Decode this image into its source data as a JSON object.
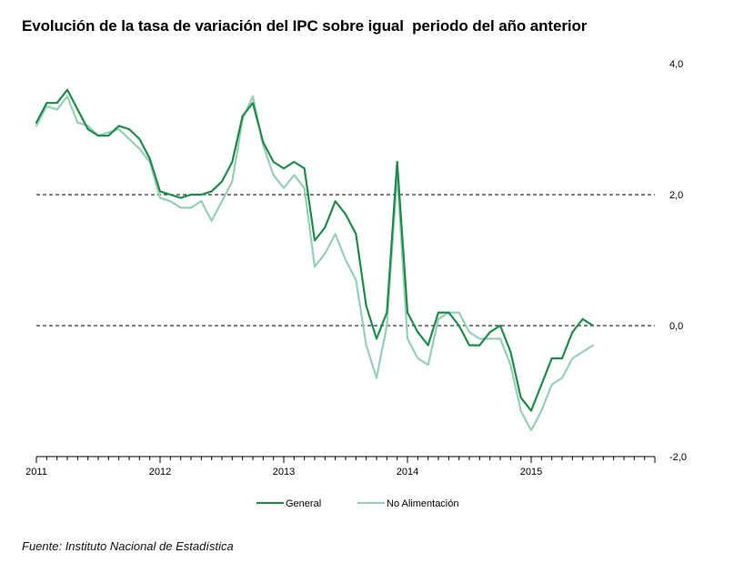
{
  "title": "Evolución de la tasa de variación del IPC sobre igual  periodo del año anterior",
  "source": "Fuente: Instituto Nacional de Estadística",
  "colors": {
    "general": "#1e8a4c",
    "no_alimentacion": "#95cfb4",
    "axis": "#000000",
    "reference": "#000000"
  },
  "chart_data": {
    "type": "line",
    "title": "Evolución de la tasa de variación del IPC sobre igual  periodo del año anterior",
    "xlabel": "",
    "ylabel": "",
    "x_range": [
      "2011-01",
      "2015-12"
    ],
    "x_tick_labels": [
      "2011",
      "2012",
      "2013",
      "2014",
      "2015"
    ],
    "ylim": [
      -2.0,
      4.0
    ],
    "y_ticks": [
      -2.0,
      0.0,
      2.0,
      4.0
    ],
    "y_tick_labels": [
      "-2,0",
      "0,0",
      "2,0",
      "4,0"
    ],
    "y_axis_side": "right",
    "reference_lines": [
      0.0,
      2.0
    ],
    "grid": false,
    "legend_position": "bottom",
    "series": [
      {
        "name": "General",
        "x": [
          "2011-01",
          "2011-02",
          "2011-03",
          "2011-04",
          "2011-05",
          "2011-06",
          "2011-07",
          "2011-08",
          "2011-09",
          "2011-10",
          "2011-11",
          "2011-12",
          "2012-01",
          "2012-02",
          "2012-03",
          "2012-04",
          "2012-05",
          "2012-06",
          "2012-07",
          "2012-08",
          "2012-09",
          "2012-10",
          "2012-11",
          "2012-12",
          "2013-01",
          "2013-02",
          "2013-03",
          "2013-04",
          "2013-05",
          "2013-06",
          "2013-07",
          "2013-08",
          "2013-09",
          "2013-10",
          "2013-11",
          "2013-12",
          "2014-01",
          "2014-02",
          "2014-03",
          "2014-04",
          "2014-05",
          "2014-06",
          "2014-07",
          "2014-08",
          "2014-09",
          "2014-10",
          "2014-11",
          "2014-12",
          "2015-01",
          "2015-02",
          "2015-03",
          "2015-04",
          "2015-05",
          "2015-06",
          "2015-07"
        ],
        "values": [
          3.1,
          3.4,
          3.4,
          3.6,
          3.3,
          3.0,
          2.9,
          2.9,
          3.05,
          3.0,
          2.85,
          2.55,
          2.05,
          2.0,
          1.95,
          2.0,
          2.0,
          2.05,
          2.2,
          2.5,
          3.2,
          3.4,
          2.8,
          2.5,
          2.4,
          2.5,
          2.4,
          1.3,
          1.5,
          1.9,
          1.7,
          1.4,
          0.3,
          -0.2,
          0.2,
          2.5,
          0.2,
          -0.1,
          -0.3,
          0.2,
          0.2,
          0.0,
          -0.3,
          -0.3,
          -0.1,
          0.0,
          -0.4,
          -1.1,
          -1.3,
          -0.9,
          -0.5,
          -0.5,
          -0.1,
          0.1,
          0.0
        ]
      },
      {
        "name": "No Alimentación",
        "x": [
          "2011-01",
          "2011-02",
          "2011-03",
          "2011-04",
          "2011-05",
          "2011-06",
          "2011-07",
          "2011-08",
          "2011-09",
          "2011-10",
          "2011-11",
          "2011-12",
          "2012-01",
          "2012-02",
          "2012-03",
          "2012-04",
          "2012-05",
          "2012-06",
          "2012-07",
          "2012-08",
          "2012-09",
          "2012-10",
          "2012-11",
          "2012-12",
          "2013-01",
          "2013-02",
          "2013-03",
          "2013-04",
          "2013-05",
          "2013-06",
          "2013-07",
          "2013-08",
          "2013-09",
          "2013-10",
          "2013-11",
          "2013-12",
          "2014-01",
          "2014-02",
          "2014-03",
          "2014-04",
          "2014-05",
          "2014-06",
          "2014-07",
          "2014-08",
          "2014-09",
          "2014-10",
          "2014-11",
          "2014-12",
          "2015-01",
          "2015-02",
          "2015-03",
          "2015-04",
          "2015-05",
          "2015-06",
          "2015-07"
        ],
        "values": [
          3.05,
          3.35,
          3.3,
          3.5,
          3.1,
          3.05,
          2.9,
          2.95,
          3.0,
          2.85,
          2.7,
          2.5,
          1.95,
          1.9,
          1.8,
          1.8,
          1.9,
          1.6,
          1.9,
          2.2,
          3.15,
          3.5,
          2.75,
          2.3,
          2.1,
          2.3,
          2.1,
          0.9,
          1.1,
          1.4,
          1.0,
          0.7,
          -0.3,
          -0.8,
          0.0,
          2.3,
          -0.2,
          -0.5,
          -0.6,
          0.1,
          0.2,
          0.2,
          -0.1,
          -0.2,
          -0.2,
          -0.2,
          -0.6,
          -1.3,
          -1.6,
          -1.3,
          -0.9,
          -0.8,
          -0.5,
          -0.4,
          -0.3
        ]
      }
    ]
  }
}
